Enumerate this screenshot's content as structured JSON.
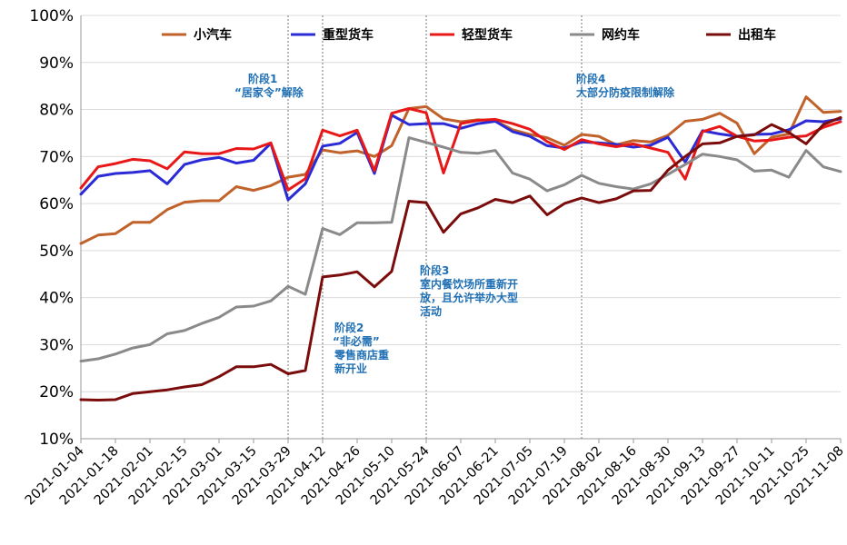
{
  "chart_data": {
    "type": "line",
    "y_tick_labels": [
      "10%",
      "20%",
      "30%",
      "40%",
      "50%",
      "60%",
      "70%",
      "80%",
      "90%",
      "100%"
    ],
    "ylim": [
      10,
      100
    ],
    "x_tick_labels": [
      "2021-01-04",
      "2021-01-18",
      "2021-02-01",
      "2021-02-15",
      "2021-03-01",
      "2021-03-15",
      "2021-03-29",
      "2021-04-12",
      "2021-04-26",
      "2021-05-10",
      "2021-05-24",
      "2021-06-07",
      "2021-06-21",
      "2021-07-05",
      "2021-07-19",
      "2021-08-02",
      "2021-08-16",
      "2021-08-30",
      "2021-09-13",
      "2021-09-27",
      "2021-10-11",
      "2021-10-25",
      "2021-11-08"
    ],
    "x": [
      "2021-01-04",
      "2021-01-11",
      "2021-01-18",
      "2021-01-25",
      "2021-02-01",
      "2021-02-08",
      "2021-02-15",
      "2021-02-22",
      "2021-03-01",
      "2021-03-08",
      "2021-03-15",
      "2021-03-22",
      "2021-03-29",
      "2021-04-05",
      "2021-04-12",
      "2021-04-19",
      "2021-04-26",
      "2021-05-03",
      "2021-05-10",
      "2021-05-17",
      "2021-05-24",
      "2021-05-31",
      "2021-06-07",
      "2021-06-14",
      "2021-06-21",
      "2021-06-28",
      "2021-07-05",
      "2021-07-12",
      "2021-07-19",
      "2021-07-26",
      "2021-08-02",
      "2021-08-09",
      "2021-08-16",
      "2021-08-23",
      "2021-08-30",
      "2021-09-06",
      "2021-09-13",
      "2021-09-20",
      "2021-09-27",
      "2021-10-04",
      "2021-10-11",
      "2021-10-18",
      "2021-10-25",
      "2021-11-01",
      "2021-11-08"
    ],
    "series": [
      {
        "name": "小汽车",
        "color": "#c0622a",
        "values": [
          51.5,
          53.3,
          53.6,
          56,
          56,
          58.7,
          60.3,
          60.6,
          60.6,
          63.6,
          62.8,
          63.8,
          65.6,
          66.2,
          71.4,
          70.8,
          71.2,
          70,
          72.3,
          80.2,
          80.6,
          78,
          77.4,
          77.8,
          77.6,
          75.7,
          74.7,
          74,
          72.4,
          74.7,
          74.3,
          72.5,
          73.4,
          73.1,
          74.5,
          77.5,
          77.9,
          79.2,
          77.1,
          70.6,
          74.1,
          74.8,
          82.7,
          79.4,
          79.6
        ]
      },
      {
        "name": "重型货车",
        "color": "#2b2bd6",
        "values": [
          62,
          65.8,
          66.4,
          66.6,
          67,
          64.2,
          68.3,
          69.3,
          69.8,
          68.6,
          69.2,
          72.8,
          60.8,
          64.2,
          72.2,
          72.8,
          75.1,
          66.4,
          78.8,
          76.8,
          77,
          77,
          76,
          77,
          77.5,
          75.3,
          74.3,
          72.3,
          71.8,
          73.1,
          72.9,
          72.6,
          72,
          72.4,
          74.1,
          68.8,
          75.5,
          74.8,
          74.3,
          74.7,
          74.8,
          75.7,
          77.6,
          77.4,
          78
        ]
      },
      {
        "name": "轻型货车",
        "color": "#e81818",
        "values": [
          63.3,
          67.8,
          68.5,
          69.4,
          69.1,
          67.4,
          71,
          70.6,
          70.6,
          71.7,
          71.6,
          72.9,
          62.9,
          65.3,
          75.6,
          74.4,
          75.6,
          67,
          79.2,
          80.2,
          79.3,
          66.5,
          77,
          77.7,
          77.9,
          77,
          75.8,
          73.2,
          71.5,
          73.6,
          72.7,
          72.1,
          72.7,
          71.8,
          70.9,
          65.2,
          75.3,
          76.4,
          74.3,
          73.3,
          73.5,
          74.1,
          74.4,
          76.2,
          77.4
        ]
      },
      {
        "name": "网约车",
        "color": "#8a8a8a",
        "values": [
          26.5,
          27,
          28,
          29.3,
          30,
          32.3,
          33,
          34.5,
          35.8,
          38,
          38.2,
          39.3,
          42.4,
          40.7,
          54.7,
          53.4,
          55.9,
          55.9,
          56,
          74,
          73,
          72,
          70.9,
          70.7,
          71.3,
          66.5,
          65.2,
          62.7,
          64,
          66,
          64.3,
          63.6,
          63.1,
          64.2,
          66.2,
          68.3,
          70.5,
          70,
          69.3,
          66.9,
          67.1,
          65.6,
          71.3,
          67.8,
          66.8
        ]
      },
      {
        "name": "出租车",
        "color": "#7b0c0c",
        "values": [
          18.3,
          18.2,
          18.3,
          19.6,
          20,
          20.4,
          21,
          21.5,
          23.2,
          25.3,
          25.3,
          25.8,
          23.8,
          24.5,
          44.4,
          44.8,
          45.5,
          42.3,
          45.6,
          60.5,
          60.2,
          53.9,
          57.8,
          59.1,
          60.9,
          60.2,
          61.6,
          57.6,
          60,
          61.2,
          60.2,
          61,
          62.7,
          62.8,
          67.1,
          70,
          72.7,
          72.9,
          74.3,
          74.6,
          76.8,
          75.1,
          72.7,
          76.8,
          78.3
        ]
      }
    ],
    "dividers_at": [
      "2021-03-29",
      "2021-04-12",
      "2021-05-24",
      "2021-07-26"
    ],
    "annotations": [
      {
        "lines": [
          "阶段1",
          "“居家令”解除"
        ]
      },
      {
        "lines": [
          "阶段2",
          "“非必需”",
          "零售商店重",
          "新开业"
        ]
      },
      {
        "lines": [
          "阶段3",
          "室内餐饮场所重新开",
          "放，且允许举办大型",
          "活动"
        ]
      },
      {
        "lines": [
          "阶段4",
          "大部分防疫限制解除"
        ]
      }
    ],
    "grid": "horizontal",
    "legend_position": "top"
  }
}
